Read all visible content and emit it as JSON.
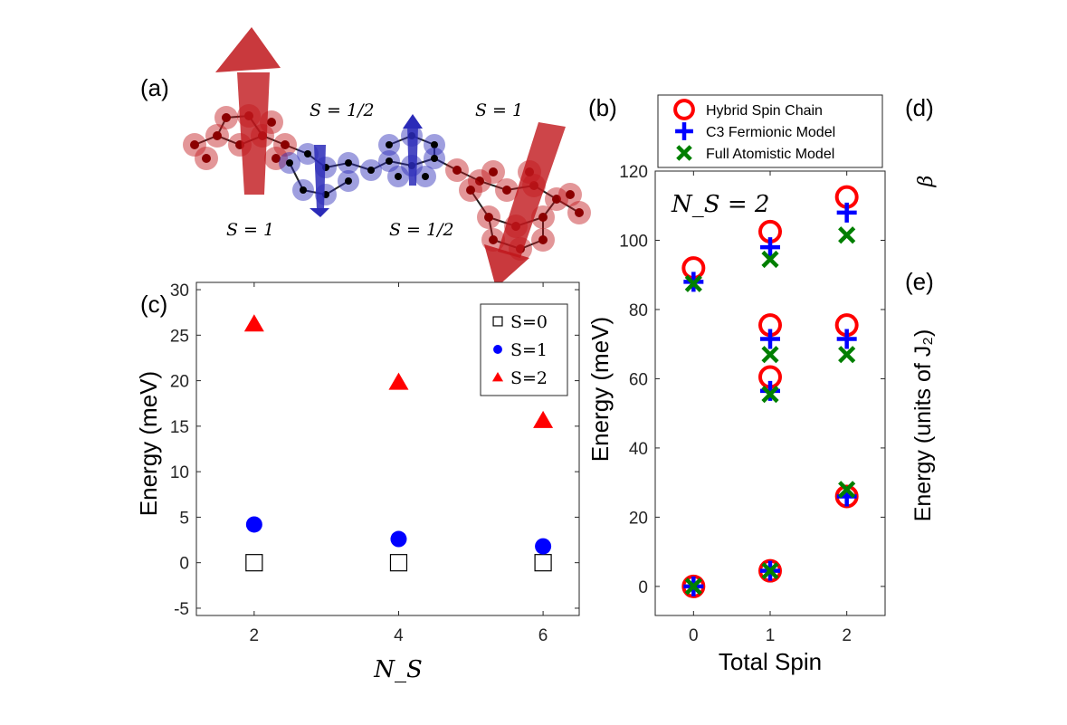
{
  "panel_labels": {
    "a": "(a)",
    "b": "(b)",
    "c": "(c)",
    "d": "(d)",
    "e": "(e)"
  },
  "illustration": {
    "spin_labels": [
      "S = 1",
      "S = 1/2",
      "S = 1",
      "S = 1/2"
    ],
    "colors": {
      "spin1": "#c0161b",
      "spin_half": "#2a2ab8"
    }
  },
  "side_labels": {
    "beta": "β",
    "energy_j2": "Energy (units of J₂)"
  },
  "chart_data": [
    {
      "id": "c",
      "type": "scatter",
      "title": "",
      "xlabel": "N_S",
      "ylabel": "Energy (meV)",
      "xlim": [
        1.2,
        6.5
      ],
      "ylim": [
        -5.8,
        30.8
      ],
      "xticks": [
        2,
        4,
        6
      ],
      "yticks": [
        -5,
        0,
        5,
        10,
        15,
        20,
        25,
        30
      ],
      "grid": false,
      "legend_position": "top-right",
      "series": [
        {
          "name": "S=0",
          "marker": "square",
          "color": "#000000",
          "x": [
            2,
            4,
            6
          ],
          "y": [
            0,
            0,
            0
          ]
        },
        {
          "name": "S=1",
          "marker": "circle",
          "color": "#0000ff",
          "x": [
            2,
            4,
            6
          ],
          "y": [
            4.2,
            2.6,
            1.8
          ]
        },
        {
          "name": "S=2",
          "marker": "triangle",
          "color": "#ff0000",
          "x": [
            2,
            4,
            6
          ],
          "y": [
            26.2,
            19.8,
            15.6
          ]
        }
      ]
    },
    {
      "id": "b",
      "type": "scatter",
      "title": "",
      "annotation": "N_S = 2",
      "xlabel": "Total Spin",
      "ylabel": "Energy (meV)",
      "xlim": [
        -0.5,
        2.5
      ],
      "ylim": [
        -8.4,
        120
      ],
      "xticks": [
        0,
        1,
        2
      ],
      "yticks": [
        0,
        20,
        40,
        60,
        80,
        100,
        120
      ],
      "grid": false,
      "legend_position": "top-outside",
      "series": [
        {
          "name": "Hybrid Spin Chain",
          "marker": "ring",
          "color": "#ff0000",
          "x": [
            0,
            0,
            1,
            1,
            1,
            1,
            2,
            2,
            2
          ],
          "y": [
            0,
            92,
            4.5,
            60.5,
            75.5,
            102.5,
            26,
            75.5,
            112.5
          ]
        },
        {
          "name": "C3 Fermionic Model",
          "marker": "plus",
          "color": "#0000ff",
          "x": [
            0,
            0,
            1,
            1,
            1,
            1,
            2,
            2,
            2
          ],
          "y": [
            0,
            88,
            4.5,
            56.5,
            71.5,
            98,
            26,
            71.5,
            108
          ]
        },
        {
          "name": "Full Atomistic Model",
          "marker": "cross",
          "color": "#007f00",
          "x": [
            0,
            0,
            1,
            1,
            1,
            1,
            2,
            2,
            2
          ],
          "y": [
            0,
            87.5,
            4.5,
            55.5,
            67,
            94.5,
            28,
            67,
            101.5
          ]
        }
      ]
    }
  ]
}
